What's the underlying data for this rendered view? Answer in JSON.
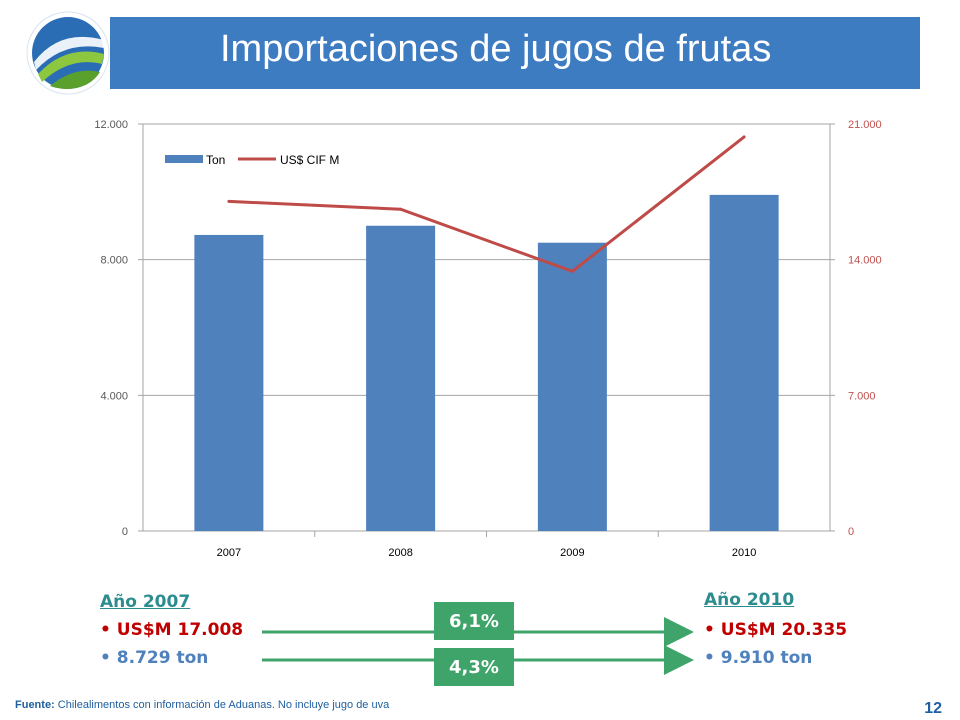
{
  "slide": {
    "title": "Importaciones de jugos de frutas",
    "page_number": "12",
    "footer_label": "Fuente:",
    "footer_text": "Chilealimentos  con información de Aduanas. No incluye jugo de uva"
  },
  "chart_data": {
    "type": "bar",
    "categories": [
      "2007",
      "2008",
      "2009",
      "2010"
    ],
    "series": [
      {
        "name": "Ton",
        "type": "bar",
        "axis": "left",
        "values": [
          8729,
          9000,
          8500,
          9910
        ]
      },
      {
        "name": "US$ CIF M",
        "type": "line",
        "axis": "right",
        "values": [
          17008,
          16600,
          13400,
          20335
        ]
      }
    ],
    "y_left": {
      "min": 0,
      "max": 12000,
      "ticks": [
        "0",
        "4.000",
        "8.000",
        "12.000"
      ],
      "tick_values": [
        0,
        4000,
        8000,
        12000
      ]
    },
    "y_right": {
      "min": 0,
      "max": 21000,
      "ticks": [
        "0",
        "7.000",
        "14.000",
        "21.000"
      ],
      "tick_values": [
        0,
        7000,
        14000,
        21000
      ]
    },
    "legend_position": "top-left",
    "grid": true,
    "colors": {
      "bar": "#4f81bd",
      "line": "#be4b48",
      "right_axis_text": "#c0504d"
    }
  },
  "summary": {
    "left": {
      "heading": "Año 2007",
      "usd": "• US$M 17.008",
      "ton": "• 8.729 ton"
    },
    "right": {
      "heading": "Año  2010",
      "usd": "• US$M 20.335",
      "ton": "• 9.910 ton"
    },
    "growth_usd": "6,1%",
    "growth_ton": "4,3%"
  }
}
